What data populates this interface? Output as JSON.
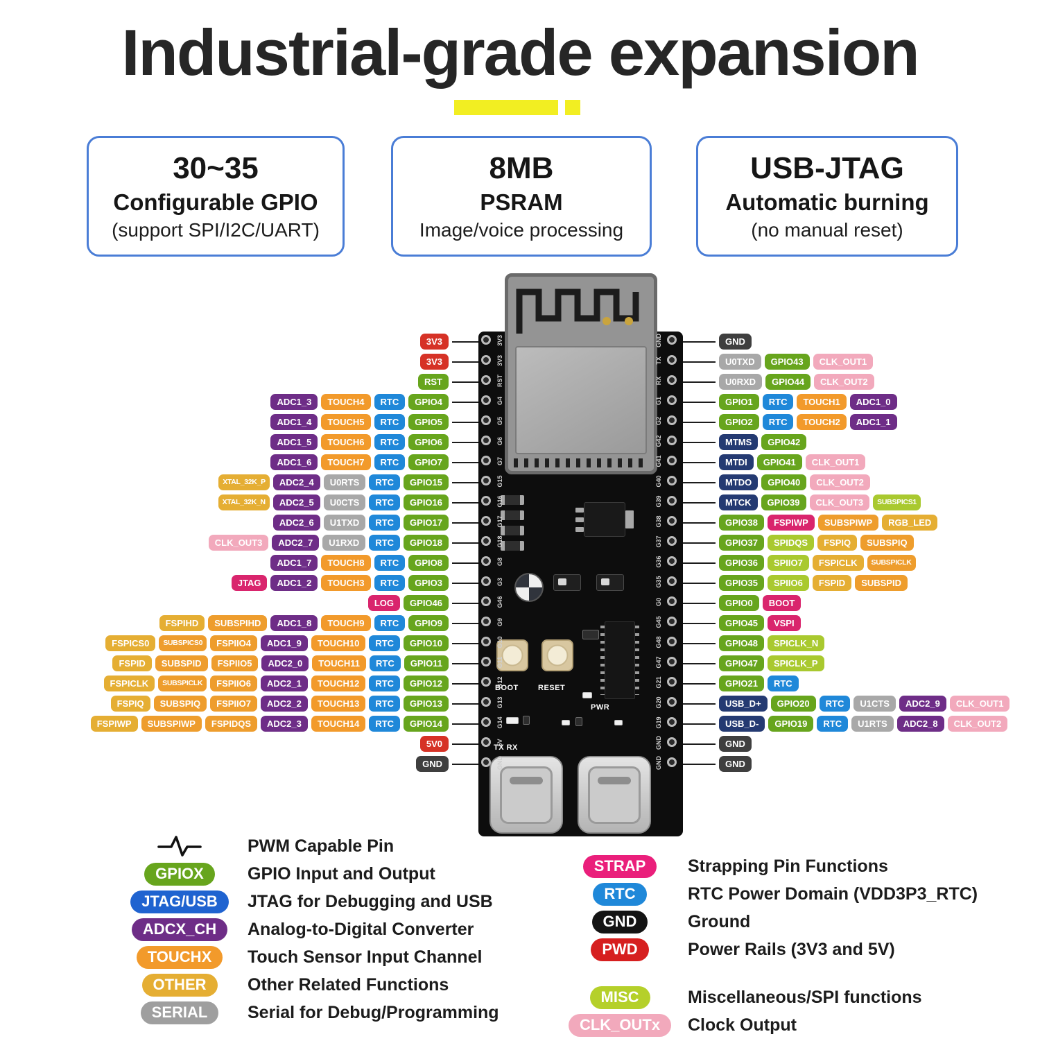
{
  "title": "Industrial-grade expansion",
  "features": [
    {
      "line1": "30~35",
      "line2": "Configurable GPIO",
      "line3": "(support SPI/I2C/UART)"
    },
    {
      "line1": "8MB",
      "line2": "PSRAM",
      "line3": "Image/voice processing"
    },
    {
      "line1": "USB-JTAG",
      "line2": "Automatic burning",
      "line3": "(no manual reset)"
    }
  ],
  "colors": {
    "accent": "#f2ee22",
    "feature_border": "#4a7dd6",
    "pwr": "#d63226",
    "gnd": "#3f3f3f",
    "gpio": "#67a51d",
    "adc": "#6e2d87",
    "touch": "#f29a2b",
    "rtc": "#1f88d9",
    "serial": "#a8a8a8",
    "clk": "#f2a9bc",
    "strap": "#d9256d",
    "jtag": "#243a72",
    "other": "#e5ae33",
    "other2": "#ee9d2d",
    "misc": "#a9c92f"
  },
  "pins": {
    "left": [
      {
        "badges": [
          [
            "3V3",
            "pwr"
          ]
        ]
      },
      {
        "badges": [
          [
            "3V3",
            "pwr"
          ]
        ]
      },
      {
        "badges": [
          [
            "RST",
            "gpio"
          ]
        ]
      },
      {
        "badges": [
          [
            "ADC1_3",
            "adc"
          ],
          [
            "TOUCH4",
            "touch"
          ],
          [
            "RTC",
            "rtc"
          ],
          [
            "GPIO4",
            "gpio"
          ]
        ]
      },
      {
        "badges": [
          [
            "ADC1_4",
            "adc"
          ],
          [
            "TOUCH5",
            "touch"
          ],
          [
            "RTC",
            "rtc"
          ],
          [
            "GPIO5",
            "gpio"
          ]
        ]
      },
      {
        "badges": [
          [
            "ADC1_5",
            "adc"
          ],
          [
            "TOUCH6",
            "touch"
          ],
          [
            "RTC",
            "rtc"
          ],
          [
            "GPIO6",
            "gpio"
          ]
        ]
      },
      {
        "badges": [
          [
            "ADC1_6",
            "adc"
          ],
          [
            "TOUCH7",
            "touch"
          ],
          [
            "RTC",
            "rtc"
          ],
          [
            "GPIO7",
            "gpio"
          ]
        ]
      },
      {
        "badges": [
          [
            "XTAL_32K_P",
            "other"
          ],
          [
            "ADC2_4",
            "adc"
          ],
          [
            "U0RTS",
            "serial"
          ],
          [
            "RTC",
            "rtc"
          ],
          [
            "GPIO15",
            "gpio"
          ]
        ]
      },
      {
        "badges": [
          [
            "XTAL_32K_N",
            "other"
          ],
          [
            "ADC2_5",
            "adc"
          ],
          [
            "U0CTS",
            "serial"
          ],
          [
            "RTC",
            "rtc"
          ],
          [
            "GPIO16",
            "gpio"
          ]
        ]
      },
      {
        "badges": [
          [
            "ADC2_6",
            "adc"
          ],
          [
            "U1TXD",
            "serial"
          ],
          [
            "RTC",
            "rtc"
          ],
          [
            "GPIO17",
            "gpio"
          ]
        ]
      },
      {
        "badges": [
          [
            "CLK_OUT3",
            "clk"
          ],
          [
            "ADC2_7",
            "adc"
          ],
          [
            "U1RXD",
            "serial"
          ],
          [
            "RTC",
            "rtc"
          ],
          [
            "GPIO18",
            "gpio"
          ]
        ]
      },
      {
        "badges": [
          [
            "ADC1_7",
            "adc"
          ],
          [
            "TOUCH8",
            "touch"
          ],
          [
            "RTC",
            "rtc"
          ],
          [
            "GPIO8",
            "gpio"
          ]
        ]
      },
      {
        "badges": [
          [
            "JTAG",
            "strap"
          ],
          [
            "ADC1_2",
            "adc"
          ],
          [
            "TOUCH3",
            "touch"
          ],
          [
            "RTC",
            "rtc"
          ],
          [
            "GPIO3",
            "gpio"
          ]
        ]
      },
      {
        "badges": [
          [
            "LOG",
            "strap"
          ],
          [
            "GPIO46",
            "gpio"
          ]
        ]
      },
      {
        "badges": [
          [
            "FSPIHD",
            "other"
          ],
          [
            "SUBSPIHD",
            "other2"
          ],
          [
            "ADC1_8",
            "adc"
          ],
          [
            "TOUCH9",
            "touch"
          ],
          [
            "RTC",
            "rtc"
          ],
          [
            "GPIO9",
            "gpio"
          ]
        ]
      },
      {
        "badges": [
          [
            "FSPICS0",
            "other"
          ],
          [
            "SUBSPICS0",
            "other2"
          ],
          [
            "FSPIIO4",
            "other2"
          ],
          [
            "ADC1_9",
            "adc"
          ],
          [
            "TOUCH10",
            "touch"
          ],
          [
            "RTC",
            "rtc"
          ],
          [
            "GPIO10",
            "gpio"
          ]
        ]
      },
      {
        "badges": [
          [
            "FSPID",
            "other"
          ],
          [
            "SUBSPID",
            "other2"
          ],
          [
            "FSPIIO5",
            "other2"
          ],
          [
            "ADC2_0",
            "adc"
          ],
          [
            "TOUCH11",
            "touch"
          ],
          [
            "RTC",
            "rtc"
          ],
          [
            "GPIO11",
            "gpio"
          ]
        ]
      },
      {
        "badges": [
          [
            "FSPICLK",
            "other"
          ],
          [
            "SUBSPICLK",
            "other2"
          ],
          [
            "FSPIIO6",
            "other2"
          ],
          [
            "ADC2_1",
            "adc"
          ],
          [
            "TOUCH12",
            "touch"
          ],
          [
            "RTC",
            "rtc"
          ],
          [
            "GPIO12",
            "gpio"
          ]
        ]
      },
      {
        "badges": [
          [
            "FSPIQ",
            "other"
          ],
          [
            "SUBSPIQ",
            "other2"
          ],
          [
            "FSPIIO7",
            "other2"
          ],
          [
            "ADC2_2",
            "adc"
          ],
          [
            "TOUCH13",
            "touch"
          ],
          [
            "RTC",
            "rtc"
          ],
          [
            "GPIO13",
            "gpio"
          ]
        ]
      },
      {
        "badges": [
          [
            "FSPIWP",
            "other"
          ],
          [
            "SUBSPIWP",
            "other2"
          ],
          [
            "FSPIDQS",
            "other2"
          ],
          [
            "ADC2_3",
            "adc"
          ],
          [
            "TOUCH14",
            "touch"
          ],
          [
            "RTC",
            "rtc"
          ],
          [
            "GPIO14",
            "gpio"
          ]
        ]
      },
      {
        "badges": [
          [
            "5V0",
            "pwr"
          ]
        ]
      },
      {
        "badges": [
          [
            "GND",
            "gnd"
          ]
        ]
      }
    ],
    "right": [
      {
        "badges": [
          [
            "GND",
            "gnd"
          ]
        ]
      },
      {
        "badges": [
          [
            "U0TXD",
            "serial"
          ],
          [
            "GPIO43",
            "gpio"
          ],
          [
            "CLK_OUT1",
            "clk"
          ]
        ]
      },
      {
        "badges": [
          [
            "U0RXD",
            "serial"
          ],
          [
            "GPIO44",
            "gpio"
          ],
          [
            "CLK_OUT2",
            "clk"
          ]
        ]
      },
      {
        "badges": [
          [
            "GPIO1",
            "gpio"
          ],
          [
            "RTC",
            "rtc"
          ],
          [
            "TOUCH1",
            "touch"
          ],
          [
            "ADC1_0",
            "adc"
          ]
        ]
      },
      {
        "badges": [
          [
            "GPIO2",
            "gpio"
          ],
          [
            "RTC",
            "rtc"
          ],
          [
            "TOUCH2",
            "touch"
          ],
          [
            "ADC1_1",
            "adc"
          ]
        ]
      },
      {
        "badges": [
          [
            "MTMS",
            "jtag"
          ],
          [
            "GPIO42",
            "gpio"
          ]
        ]
      },
      {
        "badges": [
          [
            "MTDI",
            "jtag"
          ],
          [
            "GPIO41",
            "gpio"
          ],
          [
            "CLK_OUT1",
            "clk"
          ]
        ]
      },
      {
        "badges": [
          [
            "MTDO",
            "jtag"
          ],
          [
            "GPIO40",
            "gpio"
          ],
          [
            "CLK_OUT2",
            "clk"
          ]
        ]
      },
      {
        "badges": [
          [
            "MTCK",
            "jtag"
          ],
          [
            "GPIO39",
            "gpio"
          ],
          [
            "CLK_OUT3",
            "clk"
          ],
          [
            "SUBSPICS1",
            "misc"
          ]
        ]
      },
      {
        "badges": [
          [
            "GPIO38",
            "gpio"
          ],
          [
            "FSPIWP",
            "strap"
          ],
          [
            "SUBSPIWP",
            "other2"
          ],
          [
            "RGB_LED",
            "other"
          ]
        ]
      },
      {
        "badges": [
          [
            "GPIO37",
            "gpio"
          ],
          [
            "SPIDQS",
            "misc"
          ],
          [
            "FSPIQ",
            "other"
          ],
          [
            "SUBSPIQ",
            "other2"
          ]
        ]
      },
      {
        "badges": [
          [
            "GPIO36",
            "gpio"
          ],
          [
            "SPIIO7",
            "misc"
          ],
          [
            "FSPICLK",
            "other"
          ],
          [
            "SUBSPICLK",
            "other2"
          ]
        ]
      },
      {
        "badges": [
          [
            "GPIO35",
            "gpio"
          ],
          [
            "SPIIO6",
            "misc"
          ],
          [
            "FSPID",
            "other"
          ],
          [
            "SUBSPID",
            "other2"
          ]
        ]
      },
      {
        "badges": [
          [
            "GPIO0",
            "gpio"
          ],
          [
            "BOOT",
            "strap"
          ]
        ]
      },
      {
        "badges": [
          [
            "GPIO45",
            "gpio"
          ],
          [
            "VSPI",
            "strap"
          ]
        ]
      },
      {
        "badges": [
          [
            "GPIO48",
            "gpio"
          ],
          [
            "SPICLK_N",
            "misc"
          ]
        ]
      },
      {
        "badges": [
          [
            "GPIO47",
            "gpio"
          ],
          [
            "SPICLK_P",
            "misc"
          ]
        ]
      },
      {
        "badges": [
          [
            "GPIO21",
            "gpio"
          ],
          [
            "RTC",
            "rtc"
          ]
        ]
      },
      {
        "badges": [
          [
            "USB_D+",
            "jtag"
          ],
          [
            "GPIO20",
            "gpio"
          ],
          [
            "RTC",
            "rtc"
          ],
          [
            "U1CTS",
            "serial"
          ],
          [
            "ADC2_9",
            "adc"
          ],
          [
            "CLK_OUT1",
            "clk"
          ]
        ]
      },
      {
        "badges": [
          [
            "USB_D-",
            "jtag"
          ],
          [
            "GPIO19",
            "gpio"
          ],
          [
            "RTC",
            "rtc"
          ],
          [
            "U1RTS",
            "serial"
          ],
          [
            "ADC2_8",
            "adc"
          ],
          [
            "CLK_OUT2",
            "clk"
          ]
        ]
      },
      {
        "badges": [
          [
            "GND",
            "gnd"
          ]
        ]
      },
      {
        "badges": [
          [
            "GND",
            "gnd"
          ]
        ]
      }
    ]
  },
  "board": {
    "boot_label": "BOOT",
    "reset_label": "RESET",
    "pwr_label": "PWR",
    "txrx_label": "TX RX",
    "left_pins": [
      "3V3",
      "3V3",
      "RST",
      "G4",
      "G5",
      "G6",
      "G7",
      "G15",
      "G16",
      "G17",
      "G18",
      "G8",
      "G3",
      "G46",
      "G9",
      "G10",
      "G11",
      "G12",
      "G13",
      "G14",
      "5V",
      "GND"
    ],
    "right_pins": [
      "GND",
      "TX",
      "RX",
      "G1",
      "G2",
      "G42",
      "G41",
      "G40",
      "G39",
      "G38",
      "G37",
      "G36",
      "G35",
      "G0",
      "G45",
      "G48",
      "G47",
      "G21",
      "G20",
      "G19",
      "GND",
      "GND"
    ]
  },
  "legend": {
    "left": [
      {
        "icon": "pwm",
        "text": "PWM Capable Pin"
      },
      {
        "badge": "GPIOX",
        "color": "#67a51d",
        "text": "GPIO Input and Output"
      },
      {
        "badge": "JTAG/USB",
        "color": "#1f63d0",
        "text": "JTAG for Debugging and USB"
      },
      {
        "badge": "ADCX_CH",
        "color": "#6e2d87",
        "text": "Analog-to-Digital Converter"
      },
      {
        "badge": "TOUCHX",
        "color": "#f29a2b",
        "text": "Touch Sensor Input Channel"
      },
      {
        "badge": "OTHER",
        "color": "#e5ae33",
        "text": "Other Related Functions"
      },
      {
        "badge": "SERIAL",
        "color": "#9f9f9f",
        "text": "Serial for Debug/Programming"
      }
    ],
    "right": [
      {
        "badge": "STRAP",
        "color": "#ea1f7b",
        "text": "Strapping Pin Functions"
      },
      {
        "badge": "RTC",
        "color": "#1f88d9",
        "text": "RTC Power Domain (VDD3P3_RTC)"
      },
      {
        "badge": "GND",
        "color": "#141414",
        "text": "Ground"
      },
      {
        "badge": "PWD",
        "color": "#d61f1f",
        "text": "Power Rails (3V3 and 5V)"
      },
      {
        "badge": "MISC",
        "color": "#b5d02a",
        "text": "Miscellaneous/SPI functions",
        "gap": true
      },
      {
        "badge": "CLK_OUTx",
        "color": "#f2a9bc",
        "text": "Clock Output"
      }
    ]
  }
}
